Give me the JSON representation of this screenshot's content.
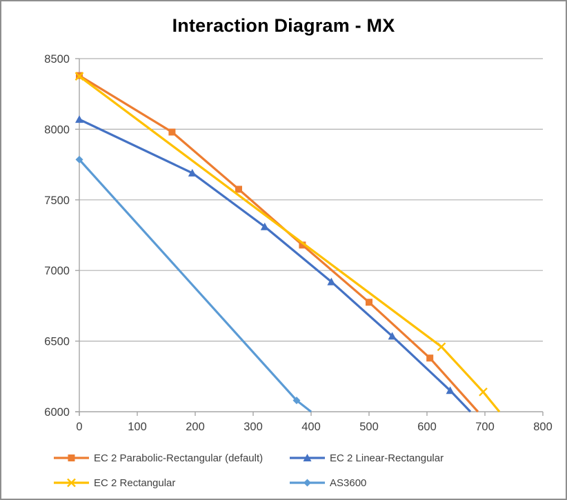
{
  "chart_data": {
    "type": "line",
    "title": "Interaction Diagram - MX",
    "xlabel": "",
    "ylabel": "",
    "xlim": [
      0,
      800
    ],
    "ylim": [
      6000,
      8500
    ],
    "x_ticks": [
      0,
      100,
      200,
      300,
      400,
      500,
      600,
      700,
      800
    ],
    "y_ticks": [
      6000,
      6500,
      7000,
      7500,
      8000,
      8500
    ],
    "grid": "horizontal",
    "legend_position": "bottom-two-columns",
    "series": [
      {
        "name": "EC 2 Parabolic-Rectangular (default)",
        "color": "#ED7D31",
        "marker": "square",
        "end_clipped": true,
        "points": [
          [
            0,
            8380
          ],
          [
            160,
            7980
          ],
          [
            275,
            7575
          ],
          [
            385,
            7180
          ],
          [
            500,
            6775
          ],
          [
            605,
            6380
          ],
          [
            688,
            6000
          ]
        ]
      },
      {
        "name": "EC 2 Linear-Rectangular",
        "color": "#4472C4",
        "marker": "triangle",
        "end_clipped": true,
        "points": [
          [
            0,
            8070
          ],
          [
            195,
            7690
          ],
          [
            320,
            7310
          ],
          [
            435,
            6920
          ],
          [
            540,
            6535
          ],
          [
            640,
            6150
          ],
          [
            675,
            6000
          ]
        ]
      },
      {
        "name": "EC 2 Rectangular",
        "color": "#FFC000",
        "marker": "x",
        "end_clipped": true,
        "points": [
          [
            0,
            8375
          ],
          [
            625,
            6460
          ],
          [
            697,
            6140
          ],
          [
            725,
            6000
          ]
        ]
      },
      {
        "name": "AS3600",
        "color": "#5B9BD5",
        "marker": "diamond",
        "end_clipped": true,
        "points": [
          [
            0,
            7785
          ],
          [
            375,
            6080
          ],
          [
            400,
            6000
          ]
        ]
      }
    ]
  },
  "colors": {
    "gridline": "#b0b0b0",
    "axis": "#a6a6a6",
    "tick_label": "#404040",
    "title": "#000000",
    "border": "#8e8e8e"
  }
}
